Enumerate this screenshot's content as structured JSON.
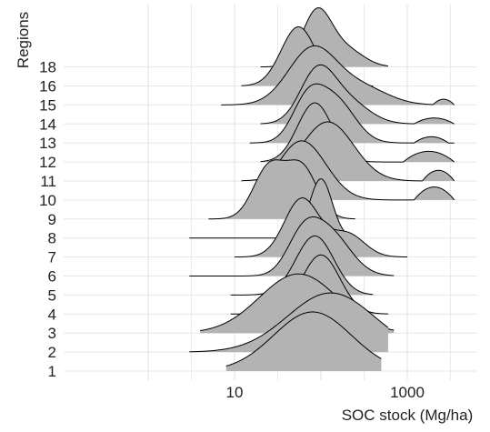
{
  "chart_data": {
    "type": "ridgeline",
    "xlabel": "SOC stock (Mg/ha)",
    "ylabel": "Regions",
    "x_scale": "log10",
    "xlim": [
      0.8,
      4000
    ],
    "x_ticks": [
      10,
      1000
    ],
    "x_tick_labels": [
      "10",
      "1000"
    ],
    "grid": true,
    "fill_color": "#b3b3b3",
    "line_color": "#000000",
    "grid_color": "#e6e6e6",
    "categories": [
      "1",
      "2",
      "3",
      "4",
      "5",
      "6",
      "7",
      "8",
      "9",
      "10",
      "11",
      "12",
      "13",
      "14",
      "15",
      "16",
      "18"
    ],
    "series": [
      {
        "label": "1",
        "range": [
          8,
          500
        ],
        "components": [
          {
            "w": 1.0,
            "mode": 80,
            "sd": 0.45
          }
        ],
        "tail": [
          [
            2000,
            3000,
            0.04
          ]
        ]
      },
      {
        "label": "2",
        "range": [
          3,
          600
        ],
        "components": [
          {
            "w": 1.0,
            "mode": 130,
            "sd": 0.5
          }
        ],
        "tail": []
      },
      {
        "label": "3",
        "range": [
          4,
          700
        ],
        "components": [
          {
            "w": 1.0,
            "mode": 55,
            "sd": 0.45
          }
        ],
        "tail": []
      },
      {
        "label": "4",
        "range": [
          9,
          600
        ],
        "components": [
          {
            "w": 1.0,
            "mode": 100,
            "sd": 0.22
          }
        ],
        "tail": [
          [
            900,
            1300,
            0.06
          ]
        ]
      },
      {
        "label": "5",
        "range": [
          9,
          400
        ],
        "components": [
          {
            "w": 1.0,
            "mode": 85,
            "sd": 0.22
          }
        ],
        "tail": []
      },
      {
        "label": "6",
        "range": [
          3,
          700
        ],
        "components": [
          {
            "w": 0.8,
            "mode": 120,
            "sd": 0.25
          },
          {
            "w": 0.55,
            "mode": 60,
            "sd": 0.18
          }
        ],
        "tail": []
      },
      {
        "label": "7",
        "range": [
          10,
          1000
        ],
        "components": [
          {
            "w": 1.0,
            "mode": 60,
            "sd": 0.2
          },
          {
            "w": 0.4,
            "mode": 200,
            "sd": 0.2
          }
        ],
        "tail": [
          [
            1400,
            2500,
            0.08
          ]
        ]
      },
      {
        "label": "8",
        "range": [
          3,
          250
        ],
        "components": [
          {
            "w": 1.0,
            "mode": 100,
            "sd": 0.13
          }
        ],
        "tail": [
          [
            1.5,
            2.4,
            0.1
          ]
        ]
      },
      {
        "label": "9",
        "range": [
          5,
          250
        ],
        "components": [
          {
            "w": 0.8,
            "mode": 25,
            "sd": 0.18
          },
          {
            "w": 0.8,
            "mode": 60,
            "sd": 0.18
          }
        ],
        "tail": [
          [
            500,
            600,
            0.05
          ],
          [
            700,
            900,
            0.05
          ]
        ]
      },
      {
        "label": "10",
        "range": [
          20,
          3500
        ],
        "components": [
          {
            "w": 1.0,
            "mode": 60,
            "sd": 0.28
          }
        ],
        "tail": [
          [
            1200,
            3500,
            0.22
          ]
        ]
      },
      {
        "label": "11",
        "range": [
          12,
          3500
        ],
        "components": [
          {
            "w": 1.0,
            "mode": 120,
            "sd": 0.3
          }
        ],
        "tail": [
          [
            1500,
            3500,
            0.18
          ]
        ]
      },
      {
        "label": "12",
        "range": [
          20,
          3500
        ],
        "components": [
          {
            "w": 1.0,
            "mode": 85,
            "sd": 0.2
          }
        ],
        "tail": [
          [
            900,
            3500,
            0.18
          ]
        ]
      },
      {
        "label": "13",
        "range": [
          15,
          3500
        ],
        "components": [
          {
            "w": 0.8,
            "mode": 70,
            "sd": 0.18
          },
          {
            "w": 0.8,
            "mode": 150,
            "sd": 0.22
          }
        ],
        "tail": [
          [
            1200,
            3000,
            0.12
          ]
        ]
      },
      {
        "label": "14",
        "range": [
          20,
          3500
        ],
        "components": [
          {
            "w": 1.0,
            "mode": 90,
            "sd": 0.2
          },
          {
            "w": 0.45,
            "mode": 200,
            "sd": 0.25
          }
        ],
        "tail": [
          [
            1200,
            3500,
            0.12
          ]
        ]
      },
      {
        "label": "15",
        "range": [
          7,
          3500
        ],
        "components": [
          {
            "w": 1.0,
            "mode": 80,
            "sd": 0.28
          },
          {
            "w": 0.3,
            "mode": 300,
            "sd": 0.3
          }
        ],
        "tail": [
          [
            2000,
            3500,
            0.1
          ]
        ]
      },
      {
        "label": "16",
        "range": [
          12,
          400
        ],
        "components": [
          {
            "w": 1.0,
            "mode": 55,
            "sd": 0.2
          }
        ],
        "tail": [
          [
            1000,
            1200,
            0.04
          ]
        ]
      },
      {
        "label": "18",
        "range": [
          20,
          600
        ],
        "components": [
          {
            "w": 1.0,
            "mode": 90,
            "sd": 0.17
          },
          {
            "w": 0.3,
            "mode": 200,
            "sd": 0.2
          }
        ],
        "tail": [
          [
            1000,
            1600,
            0.03
          ]
        ]
      }
    ]
  }
}
